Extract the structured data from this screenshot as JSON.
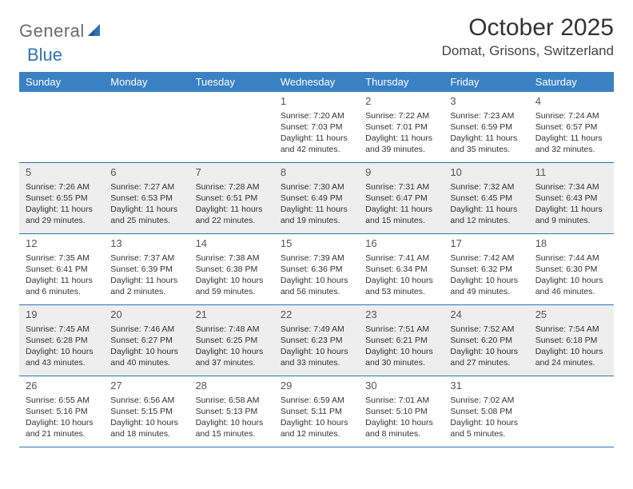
{
  "logo": {
    "text1": "General",
    "text2": "Blue"
  },
  "title": "October 2025",
  "subtitle": "Domat, Grisons, Switzerland",
  "colors": {
    "header_bg": "#3a81c4",
    "border": "#2e74b5",
    "shaded": "#eeeeee",
    "text": "#333333"
  },
  "dayNames": [
    "Sunday",
    "Monday",
    "Tuesday",
    "Wednesday",
    "Thursday",
    "Friday",
    "Saturday"
  ],
  "weeks": [
    [
      {
        "blank": true
      },
      {
        "blank": true
      },
      {
        "blank": true
      },
      {
        "num": "1",
        "sunrise": "Sunrise: 7:20 AM",
        "sunset": "Sunset: 7:03 PM",
        "day1": "Daylight: 11 hours",
        "day2": "and 42 minutes."
      },
      {
        "num": "2",
        "sunrise": "Sunrise: 7:22 AM",
        "sunset": "Sunset: 7:01 PM",
        "day1": "Daylight: 11 hours",
        "day2": "and 39 minutes."
      },
      {
        "num": "3",
        "sunrise": "Sunrise: 7:23 AM",
        "sunset": "Sunset: 6:59 PM",
        "day1": "Daylight: 11 hours",
        "day2": "and 35 minutes."
      },
      {
        "num": "4",
        "sunrise": "Sunrise: 7:24 AM",
        "sunset": "Sunset: 6:57 PM",
        "day1": "Daylight: 11 hours",
        "day2": "and 32 minutes."
      }
    ],
    [
      {
        "num": "5",
        "shaded": true,
        "sunrise": "Sunrise: 7:26 AM",
        "sunset": "Sunset: 6:55 PM",
        "day1": "Daylight: 11 hours",
        "day2": "and 29 minutes."
      },
      {
        "num": "6",
        "shaded": true,
        "sunrise": "Sunrise: 7:27 AM",
        "sunset": "Sunset: 6:53 PM",
        "day1": "Daylight: 11 hours",
        "day2": "and 25 minutes."
      },
      {
        "num": "7",
        "shaded": true,
        "sunrise": "Sunrise: 7:28 AM",
        "sunset": "Sunset: 6:51 PM",
        "day1": "Daylight: 11 hours",
        "day2": "and 22 minutes."
      },
      {
        "num": "8",
        "shaded": true,
        "sunrise": "Sunrise: 7:30 AM",
        "sunset": "Sunset: 6:49 PM",
        "day1": "Daylight: 11 hours",
        "day2": "and 19 minutes."
      },
      {
        "num": "9",
        "shaded": true,
        "sunrise": "Sunrise: 7:31 AM",
        "sunset": "Sunset: 6:47 PM",
        "day1": "Daylight: 11 hours",
        "day2": "and 15 minutes."
      },
      {
        "num": "10",
        "shaded": true,
        "sunrise": "Sunrise: 7:32 AM",
        "sunset": "Sunset: 6:45 PM",
        "day1": "Daylight: 11 hours",
        "day2": "and 12 minutes."
      },
      {
        "num": "11",
        "shaded": true,
        "sunrise": "Sunrise: 7:34 AM",
        "sunset": "Sunset: 6:43 PM",
        "day1": "Daylight: 11 hours",
        "day2": "and 9 minutes."
      }
    ],
    [
      {
        "num": "12",
        "sunrise": "Sunrise: 7:35 AM",
        "sunset": "Sunset: 6:41 PM",
        "day1": "Daylight: 11 hours",
        "day2": "and 6 minutes."
      },
      {
        "num": "13",
        "sunrise": "Sunrise: 7:37 AM",
        "sunset": "Sunset: 6:39 PM",
        "day1": "Daylight: 11 hours",
        "day2": "and 2 minutes."
      },
      {
        "num": "14",
        "sunrise": "Sunrise: 7:38 AM",
        "sunset": "Sunset: 6:38 PM",
        "day1": "Daylight: 10 hours",
        "day2": "and 59 minutes."
      },
      {
        "num": "15",
        "sunrise": "Sunrise: 7:39 AM",
        "sunset": "Sunset: 6:36 PM",
        "day1": "Daylight: 10 hours",
        "day2": "and 56 minutes."
      },
      {
        "num": "16",
        "sunrise": "Sunrise: 7:41 AM",
        "sunset": "Sunset: 6:34 PM",
        "day1": "Daylight: 10 hours",
        "day2": "and 53 minutes."
      },
      {
        "num": "17",
        "sunrise": "Sunrise: 7:42 AM",
        "sunset": "Sunset: 6:32 PM",
        "day1": "Daylight: 10 hours",
        "day2": "and 49 minutes."
      },
      {
        "num": "18",
        "sunrise": "Sunrise: 7:44 AM",
        "sunset": "Sunset: 6:30 PM",
        "day1": "Daylight: 10 hours",
        "day2": "and 46 minutes."
      }
    ],
    [
      {
        "num": "19",
        "shaded": true,
        "sunrise": "Sunrise: 7:45 AM",
        "sunset": "Sunset: 6:28 PM",
        "day1": "Daylight: 10 hours",
        "day2": "and 43 minutes."
      },
      {
        "num": "20",
        "shaded": true,
        "sunrise": "Sunrise: 7:46 AM",
        "sunset": "Sunset: 6:27 PM",
        "day1": "Daylight: 10 hours",
        "day2": "and 40 minutes."
      },
      {
        "num": "21",
        "shaded": true,
        "sunrise": "Sunrise: 7:48 AM",
        "sunset": "Sunset: 6:25 PM",
        "day1": "Daylight: 10 hours",
        "day2": "and 37 minutes."
      },
      {
        "num": "22",
        "shaded": true,
        "sunrise": "Sunrise: 7:49 AM",
        "sunset": "Sunset: 6:23 PM",
        "day1": "Daylight: 10 hours",
        "day2": "and 33 minutes."
      },
      {
        "num": "23",
        "shaded": true,
        "sunrise": "Sunrise: 7:51 AM",
        "sunset": "Sunset: 6:21 PM",
        "day1": "Daylight: 10 hours",
        "day2": "and 30 minutes."
      },
      {
        "num": "24",
        "shaded": true,
        "sunrise": "Sunrise: 7:52 AM",
        "sunset": "Sunset: 6:20 PM",
        "day1": "Daylight: 10 hours",
        "day2": "and 27 minutes."
      },
      {
        "num": "25",
        "shaded": true,
        "sunrise": "Sunrise: 7:54 AM",
        "sunset": "Sunset: 6:18 PM",
        "day1": "Daylight: 10 hours",
        "day2": "and 24 minutes."
      }
    ],
    [
      {
        "num": "26",
        "sunrise": "Sunrise: 6:55 AM",
        "sunset": "Sunset: 5:16 PM",
        "day1": "Daylight: 10 hours",
        "day2": "and 21 minutes."
      },
      {
        "num": "27",
        "sunrise": "Sunrise: 6:56 AM",
        "sunset": "Sunset: 5:15 PM",
        "day1": "Daylight: 10 hours",
        "day2": "and 18 minutes."
      },
      {
        "num": "28",
        "sunrise": "Sunrise: 6:58 AM",
        "sunset": "Sunset: 5:13 PM",
        "day1": "Daylight: 10 hours",
        "day2": "and 15 minutes."
      },
      {
        "num": "29",
        "sunrise": "Sunrise: 6:59 AM",
        "sunset": "Sunset: 5:11 PM",
        "day1": "Daylight: 10 hours",
        "day2": "and 12 minutes."
      },
      {
        "num": "30",
        "sunrise": "Sunrise: 7:01 AM",
        "sunset": "Sunset: 5:10 PM",
        "day1": "Daylight: 10 hours",
        "day2": "and 8 minutes."
      },
      {
        "num": "31",
        "sunrise": "Sunrise: 7:02 AM",
        "sunset": "Sunset: 5:08 PM",
        "day1": "Daylight: 10 hours",
        "day2": "and 5 minutes."
      },
      {
        "blank": true
      }
    ]
  ]
}
